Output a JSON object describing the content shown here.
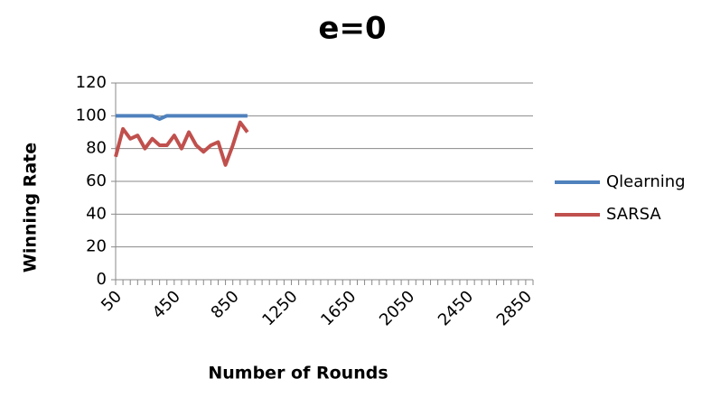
{
  "chart_data": {
    "type": "line",
    "title": "e=0",
    "x_label": "Number of Rounds",
    "y_label": "Winning Rate",
    "categories": [
      "50",
      null,
      null,
      null,
      null,
      null,
      null,
      null,
      "450",
      null,
      null,
      null,
      null,
      null,
      null,
      null,
      "850",
      null,
      null,
      null,
      null,
      null,
      null,
      null,
      "1250",
      null,
      null,
      null,
      null,
      null,
      null,
      null,
      "1650",
      null,
      null,
      null,
      null,
      null,
      null,
      null,
      "2050",
      null,
      null,
      null,
      null,
      null,
      null,
      null,
      "2450",
      null,
      null,
      null,
      null,
      null,
      null,
      null,
      "2850",
      null
    ],
    "series": [
      {
        "name": "Qlearning",
        "color": "#4f81bd",
        "values": [
          100,
          100,
          100,
          100,
          100,
          100,
          98,
          100,
          100,
          100,
          100,
          100,
          100,
          100,
          100,
          100,
          100,
          100,
          100,
          null,
          null,
          null,
          null,
          null,
          null,
          null,
          null,
          null,
          null,
          null,
          null,
          null,
          null,
          null,
          null,
          null,
          null,
          null,
          null,
          null,
          null,
          null,
          null,
          null,
          null,
          null,
          null,
          null,
          null,
          null,
          null,
          null,
          null,
          null,
          null,
          null,
          null,
          null
        ]
      },
      {
        "name": "SARSA",
        "color": "#c0504d",
        "values": [
          75,
          92,
          86,
          88,
          80,
          86,
          82,
          82,
          88,
          80,
          90,
          82,
          78,
          82,
          84,
          70,
          82,
          96,
          90,
          null,
          null,
          null,
          null,
          null,
          null,
          null,
          null,
          null,
          null,
          null,
          null,
          null,
          null,
          null,
          null,
          null,
          null,
          null,
          null,
          null,
          null,
          null,
          null,
          null,
          null,
          null,
          null,
          null,
          null,
          null,
          null,
          null,
          null,
          null,
          null,
          null,
          null,
          null
        ]
      }
    ],
    "ylim": [
      0,
      120
    ],
    "yticks": [
      0,
      20,
      40,
      60,
      80,
      100,
      120
    ],
    "grid": true,
    "legend": "right"
  }
}
